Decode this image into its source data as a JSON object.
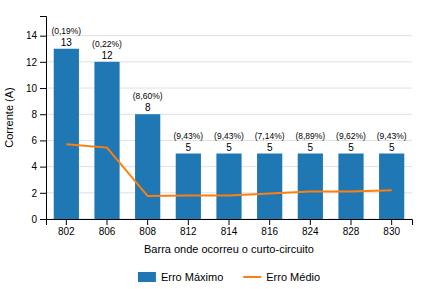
{
  "chart_data": {
    "type": "bar",
    "categories": [
      "802",
      "806",
      "808",
      "812",
      "814",
      "816",
      "824",
      "828",
      "830"
    ],
    "series": [
      {
        "name": "Erro Máximo",
        "type": "bar",
        "values": [
          13,
          12,
          8,
          5,
          5,
          5,
          5,
          5,
          5
        ],
        "data_labels": true
      },
      {
        "name": "Erro Médio",
        "type": "line",
        "values": [
          5.7,
          5.45,
          1.75,
          1.8,
          1.8,
          1.95,
          2.1,
          2.1,
          2.2
        ]
      }
    ],
    "annotations": [
      "(0,19%)",
      "(0,22%)",
      "(8,60%)",
      "(9,43%)",
      "(9,43%)",
      "(7,14%)",
      "(8,89%)",
      "(9,62%)",
      "(9,43%)"
    ],
    "x_label": "Barra onde ocorreu o curto-circuito",
    "y_label": "Corrente (A)",
    "ylim": [
      0,
      15.5
    ],
    "yticks": [
      0,
      2,
      4,
      6,
      8,
      10,
      12,
      14
    ],
    "grid": true,
    "legend": "bottom"
  }
}
